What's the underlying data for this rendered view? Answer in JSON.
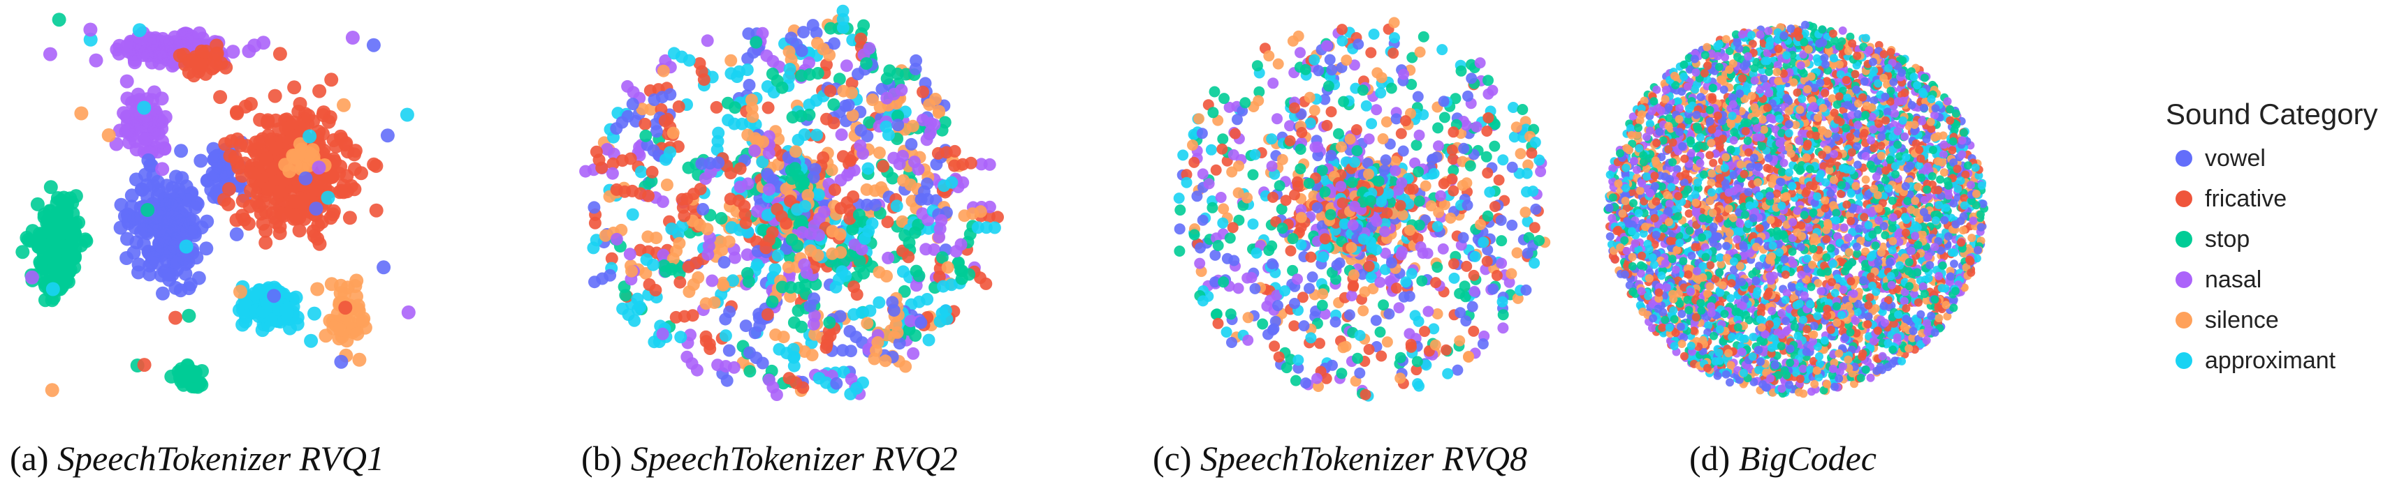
{
  "chart_data": [
    {
      "type": "scatter",
      "panel_label": "(a)",
      "title": "SpeechTokenizer RVQ1",
      "layout": "clustered",
      "clusters": [
        {
          "category": "nasal",
          "center": [
            0.38,
            0.08
          ],
          "spread": [
            0.16,
            0.05
          ],
          "count": 140
        },
        {
          "category": "nasal",
          "center": [
            0.3,
            0.28
          ],
          "spread": [
            0.06,
            0.1
          ],
          "count": 80
        },
        {
          "category": "vowel",
          "center": [
            0.35,
            0.55
          ],
          "spread": [
            0.09,
            0.14
          ],
          "count": 220
        },
        {
          "category": "vowel",
          "center": [
            0.5,
            0.4
          ],
          "spread": [
            0.05,
            0.07
          ],
          "count": 50
        },
        {
          "category": "fricative",
          "center": [
            0.68,
            0.4
          ],
          "spread": [
            0.14,
            0.16
          ],
          "count": 380
        },
        {
          "category": "fricative",
          "center": [
            0.45,
            0.12
          ],
          "spread": [
            0.05,
            0.05
          ],
          "count": 30
        },
        {
          "category": "stop",
          "center": [
            0.08,
            0.6
          ],
          "spread": [
            0.06,
            0.14
          ],
          "count": 200
        },
        {
          "category": "stop",
          "center": [
            0.42,
            0.95
          ],
          "spread": [
            0.04,
            0.03
          ],
          "count": 30
        },
        {
          "category": "approximant",
          "center": [
            0.62,
            0.77
          ],
          "spread": [
            0.07,
            0.05
          ],
          "count": 130
        },
        {
          "category": "silence",
          "center": [
            0.82,
            0.8
          ],
          "spread": [
            0.05,
            0.08
          ],
          "count": 50
        },
        {
          "category": "silence",
          "center": [
            0.7,
            0.36
          ],
          "spread": [
            0.06,
            0.04
          ],
          "count": 20
        }
      ]
    },
    {
      "type": "scatter",
      "panel_label": "(b)",
      "title": "SpeechTokenizer RVQ2",
      "layout": "sparse-cloud",
      "count": 700
    },
    {
      "type": "scatter",
      "panel_label": "(c)",
      "title": "SpeechTokenizer RVQ8",
      "layout": "dense-center",
      "count": 1600
    },
    {
      "type": "scatter",
      "panel_label": "(d)",
      "title": "BigCodec",
      "layout": "uniform-disk",
      "count": 5000
    }
  ],
  "legend": {
    "title": "Sound Category",
    "items": [
      {
        "label": "vowel",
        "color": "#636efa"
      },
      {
        "label": "fricative",
        "color": "#ef553b"
      },
      {
        "label": "stop",
        "color": "#00cc96"
      },
      {
        "label": "nasal",
        "color": "#ab63fa"
      },
      {
        "label": "silence",
        "color": "#ffa15a"
      },
      {
        "label": "approximant",
        "color": "#19d3f3"
      }
    ]
  }
}
